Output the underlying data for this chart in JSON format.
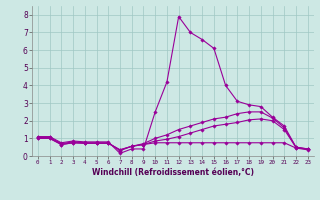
{
  "xlabel": "Windchill (Refroidissement éolien,°C)",
  "xlim": [
    -0.5,
    23.5
  ],
  "ylim": [
    0,
    8.5
  ],
  "xticks": [
    0,
    1,
    2,
    3,
    4,
    5,
    6,
    7,
    8,
    9,
    10,
    11,
    12,
    13,
    14,
    15,
    16,
    17,
    18,
    19,
    20,
    21,
    22,
    23
  ],
  "yticks": [
    0,
    1,
    2,
    3,
    4,
    5,
    6,
    7,
    8
  ],
  "background_color": "#cde8e4",
  "grid_color": "#a0c8c4",
  "line_color": "#990099",
  "lines": [
    {
      "x": [
        0,
        1,
        2,
        3,
        4,
        5,
        6,
        7,
        8,
        9,
        10,
        11,
        12,
        13,
        14,
        15,
        16,
        17,
        18,
        19,
        20,
        21,
        22,
        23
      ],
      "y": [
        1.1,
        1.1,
        0.75,
        0.85,
        0.8,
        0.8,
        0.8,
        0.15,
        0.4,
        0.4,
        2.5,
        4.2,
        7.9,
        7.0,
        6.6,
        6.1,
        4.0,
        3.1,
        2.9,
        2.8,
        2.2,
        1.7,
        0.5,
        0.4
      ]
    },
    {
      "x": [
        0,
        1,
        2,
        3,
        4,
        5,
        6,
        7,
        8,
        9,
        10,
        11,
        12,
        13,
        14,
        15,
        16,
        17,
        18,
        19,
        20,
        21,
        22,
        23
      ],
      "y": [
        1.05,
        1.05,
        0.7,
        0.8,
        0.75,
        0.75,
        0.75,
        0.3,
        0.55,
        0.7,
        1.0,
        1.2,
        1.5,
        1.7,
        1.9,
        2.1,
        2.2,
        2.4,
        2.5,
        2.5,
        2.15,
        1.6,
        0.5,
        0.4
      ]
    },
    {
      "x": [
        0,
        1,
        2,
        3,
        4,
        5,
        6,
        7,
        8,
        9,
        10,
        11,
        12,
        13,
        14,
        15,
        16,
        17,
        18,
        19,
        20,
        21,
        22,
        23
      ],
      "y": [
        1.0,
        1.0,
        0.65,
        0.75,
        0.72,
        0.72,
        0.72,
        0.35,
        0.55,
        0.65,
        0.85,
        0.95,
        1.1,
        1.3,
        1.5,
        1.7,
        1.8,
        1.9,
        2.05,
        2.1,
        2.0,
        1.5,
        0.48,
        0.38
      ]
    },
    {
      "x": [
        0,
        1,
        2,
        3,
        4,
        5,
        6,
        7,
        8,
        9,
        10,
        11,
        12,
        13,
        14,
        15,
        16,
        17,
        18,
        19,
        20,
        21,
        22,
        23
      ],
      "y": [
        1.0,
        1.0,
        0.65,
        0.75,
        0.72,
        0.72,
        0.72,
        0.35,
        0.55,
        0.65,
        0.75,
        0.75,
        0.75,
        0.75,
        0.75,
        0.75,
        0.75,
        0.75,
        0.75,
        0.75,
        0.75,
        0.75,
        0.45,
        0.35
      ]
    }
  ]
}
